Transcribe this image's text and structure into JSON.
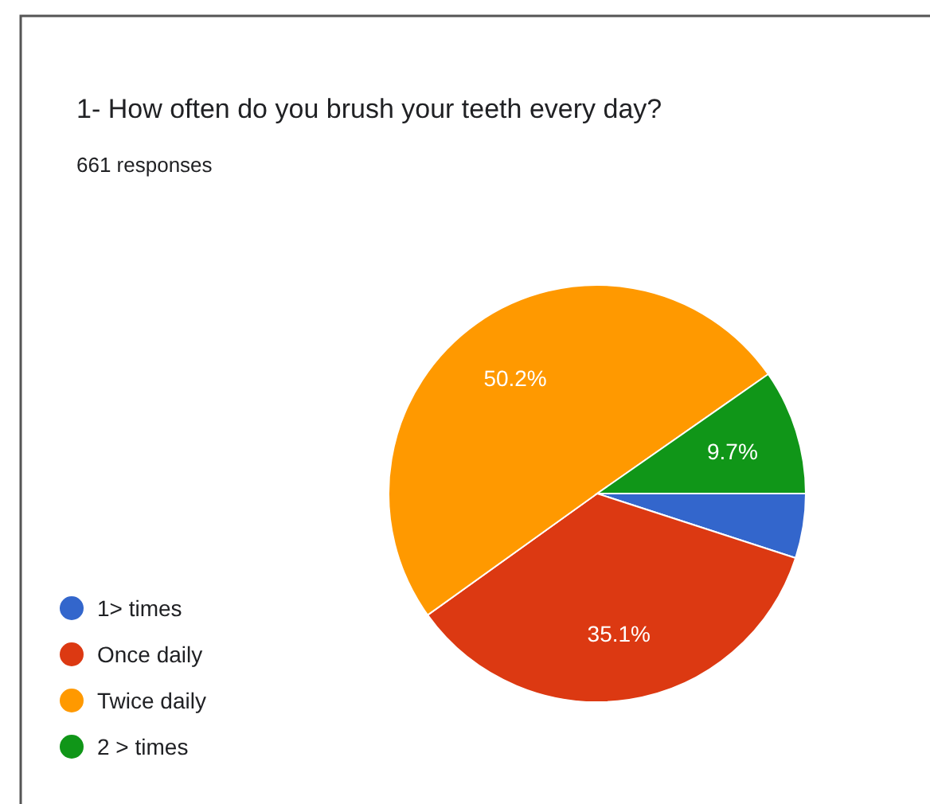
{
  "chart_data": {
    "type": "pie",
    "title": "1-   How often do you brush your teeth every day?",
    "subtitle": "661 responses",
    "categories": [
      "1> times",
      "Once daily",
      "Twice daily",
      "2 > times"
    ],
    "values": [
      5.0,
      35.1,
      50.2,
      9.7
    ],
    "colors": [
      "#3366cc",
      "#dc3912",
      "#ff9900",
      "#109618"
    ],
    "value_labels": [
      null,
      "35.1%",
      "50.2%",
      "9.7%"
    ],
    "legend": "bottom left"
  }
}
